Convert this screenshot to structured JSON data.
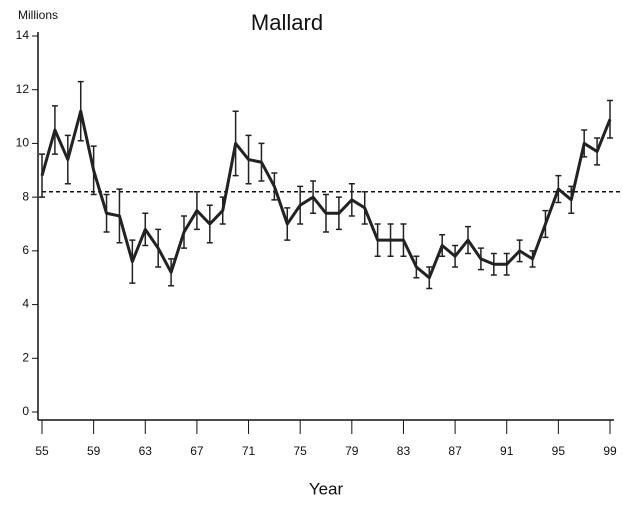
{
  "chart_data": {
    "type": "line",
    "title": "Mallard",
    "y_label": "Millions",
    "x_label": "Year",
    "x": [
      55,
      56,
      57,
      58,
      59,
      60,
      61,
      62,
      63,
      64,
      65,
      66,
      67,
      68,
      69,
      70,
      71,
      72,
      73,
      74,
      75,
      76,
      77,
      78,
      79,
      80,
      81,
      82,
      83,
      84,
      85,
      86,
      87,
      88,
      89,
      90,
      91,
      92,
      93,
      94,
      95,
      96,
      97,
      98,
      99
    ],
    "values": [
      8.8,
      10.5,
      9.4,
      11.2,
      9.0,
      7.4,
      7.3,
      5.6,
      6.8,
      6.1,
      5.2,
      6.7,
      7.5,
      7.0,
      7.5,
      10.0,
      9.4,
      9.3,
      8.4,
      7.0,
      7.7,
      8.0,
      7.4,
      7.4,
      7.9,
      7.6,
      6.4,
      6.4,
      6.4,
      5.4,
      5.0,
      6.2,
      5.8,
      6.4,
      5.7,
      5.5,
      5.5,
      6.0,
      5.7,
      7.0,
      8.3,
      7.9,
      10.0,
      9.7,
      10.9
    ],
    "errors": [
      0.8,
      0.9,
      0.9,
      1.1,
      0.9,
      0.7,
      1.0,
      0.8,
      0.6,
      0.7,
      0.5,
      0.6,
      0.7,
      0.7,
      0.5,
      1.2,
      0.9,
      0.7,
      0.5,
      0.6,
      0.7,
      0.6,
      0.7,
      0.6,
      0.6,
      0.6,
      0.6,
      0.6,
      0.6,
      0.4,
      0.4,
      0.4,
      0.4,
      0.5,
      0.4,
      0.4,
      0.4,
      0.4,
      0.3,
      0.5,
      0.5,
      0.5,
      0.5,
      0.5,
      0.7
    ],
    "color": "#222222",
    "reference_line": 8.2,
    "xlim": [
      55,
      99
    ],
    "xticks": [
      55,
      59,
      63,
      67,
      71,
      75,
      79,
      83,
      87,
      91,
      95,
      99
    ],
    "ylim": [
      0,
      14
    ],
    "yticks": [
      0,
      2,
      4,
      6,
      8,
      10,
      12,
      14
    ]
  }
}
